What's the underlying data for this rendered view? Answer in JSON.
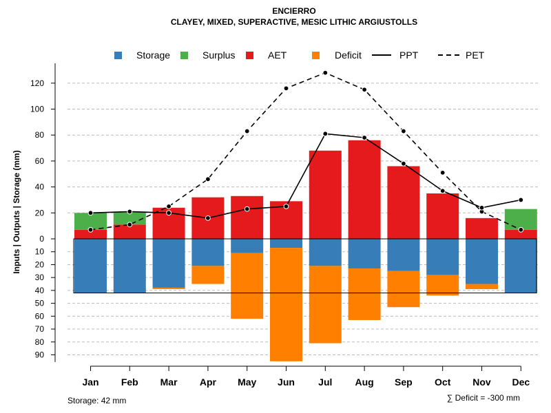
{
  "chart_data": {
    "type": "bar",
    "title": "ENCIERRO",
    "subtitle": "CLAYEY, MIXED, SUPERACTIVE, MESIC LITHIC ARGIUSTOLLS",
    "ylabel": "Inputs | Outputs | Storage    (mm)",
    "categories": [
      "Jan",
      "Feb",
      "Mar",
      "Apr",
      "May",
      "Jun",
      "Jul",
      "Aug",
      "Sep",
      "Oct",
      "Nov",
      "Dec"
    ],
    "ylim_upper": [
      0,
      130
    ],
    "ylim_lower": [
      0,
      95
    ],
    "upper_ticks": [
      0,
      20,
      40,
      60,
      80,
      100,
      120
    ],
    "upper_tick_labels": [
      "0",
      "20",
      "40",
      "60",
      "80",
      "100",
      "120"
    ],
    "lower_ticks": [
      10,
      20,
      30,
      40,
      50,
      60,
      70,
      80,
      90
    ],
    "lower_tick_labels": [
      "10",
      "20",
      "30",
      "40",
      "50",
      "60",
      "70",
      "80",
      "90"
    ],
    "series": [
      {
        "name": "Storage",
        "color": "#377EB8",
        "values": [
          42,
          42,
          38,
          21,
          11,
          7,
          21,
          23,
          25,
          28,
          35,
          42
        ]
      },
      {
        "name": "Surplus",
        "color": "#4DAF4A",
        "values": [
          13,
          10,
          0,
          0,
          0,
          0,
          0,
          0,
          0,
          0,
          0,
          16
        ]
      },
      {
        "name": "AET",
        "color": "#E41A1C",
        "values": [
          7,
          11,
          24,
          32,
          33,
          29,
          68,
          76,
          56,
          35,
          16,
          7
        ]
      },
      {
        "name": "Deficit",
        "color": "#FF7F00",
        "values": [
          0,
          0,
          1,
          14,
          51,
          88,
          60,
          40,
          28,
          16,
          4,
          0
        ]
      },
      {
        "name": "PPT",
        "values": [
          20,
          21,
          20,
          16,
          23,
          25,
          81,
          78,
          58,
          37,
          24,
          30
        ]
      },
      {
        "name": "PET",
        "values": [
          7,
          11,
          25,
          46,
          83,
          116,
          128,
          115,
          83,
          51,
          21,
          7
        ]
      }
    ],
    "legend": {
      "position": "top",
      "labels": [
        "Storage",
        "Surplus",
        "AET",
        "Deficit",
        "PPT",
        "PET"
      ]
    },
    "storage_note": "Storage: 42 mm",
    "deficit_note": "∑ Deficit = -300 mm",
    "grid": true,
    "colors": {
      "grid": "#bbbbbb",
      "line": "#000000",
      "point": "#000000",
      "frame": "#000000"
    }
  }
}
